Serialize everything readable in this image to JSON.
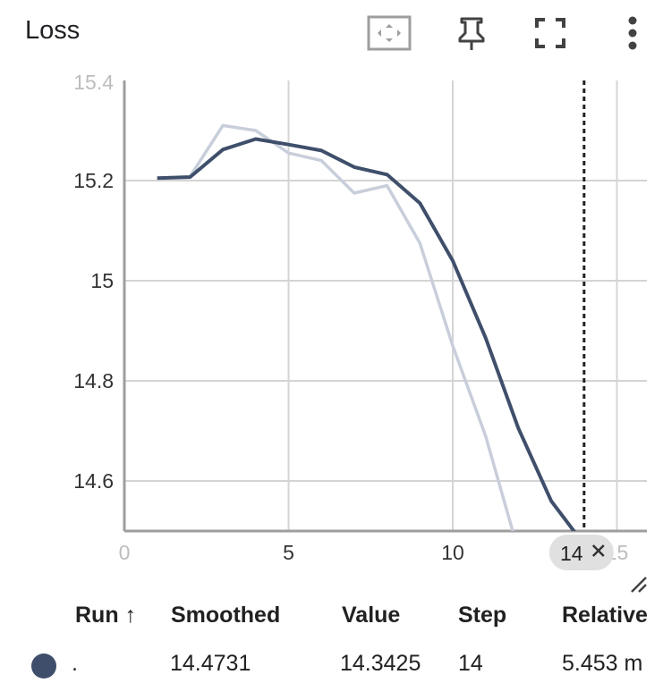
{
  "card": {
    "title": "Loss"
  },
  "toolbar": {
    "fit_icon": "fit-domain-icon",
    "pin_icon": "pin-icon",
    "fullscreen_icon": "fullscreen-icon",
    "more_icon": "more-vert-icon"
  },
  "colors": {
    "smoothed": "#3f4f6b",
    "raw": "#c8ceda",
    "grid": "#d4d4d4",
    "axis": "#9e9e9e"
  },
  "chart_data": {
    "type": "line",
    "title": "Loss",
    "xlabel": "",
    "ylabel": "",
    "xlim": [
      0,
      15.2
    ],
    "ylim": [
      14.5,
      15.4
    ],
    "x_ticks": [
      "0",
      "5",
      "10",
      "15"
    ],
    "y_ticks": [
      "15.2",
      "15",
      "14.8",
      "14.6"
    ],
    "y_top_partial_tick": "15.4",
    "grid": true,
    "series": [
      {
        "role": "raw",
        "x": [
          1,
          2,
          3,
          4,
          5,
          6,
          7,
          8,
          9,
          10,
          11,
          12,
          13,
          14
        ],
        "values": [
          15.205,
          15.208,
          15.31,
          15.3,
          15.255,
          15.24,
          15.175,
          15.19,
          15.075,
          14.87,
          14.69,
          14.46,
          14.4,
          14.3425
        ]
      },
      {
        "role": "smoothed",
        "x": [
          1,
          2,
          3,
          4,
          5,
          6,
          7,
          8,
          9,
          10,
          11,
          12,
          13,
          14
        ],
        "values": [
          15.205,
          15.207,
          15.262,
          15.283,
          15.272,
          15.26,
          15.227,
          15.212,
          15.155,
          15.04,
          14.886,
          14.705,
          14.56,
          14.4731
        ]
      }
    ],
    "hover": {
      "x": 14,
      "label": "14"
    }
  },
  "table": {
    "headers": {
      "run": "Run",
      "sort_icon": "arrow-up-icon",
      "smoothed": "Smoothed",
      "value": "Value",
      "step": "Step",
      "relative": "Relative"
    },
    "rows": [
      {
        "color": "#3f4f6b",
        "run": ".",
        "smoothed": "14.4731",
        "value": "14.3425",
        "step": "14",
        "relative": "5.453 m"
      }
    ]
  }
}
